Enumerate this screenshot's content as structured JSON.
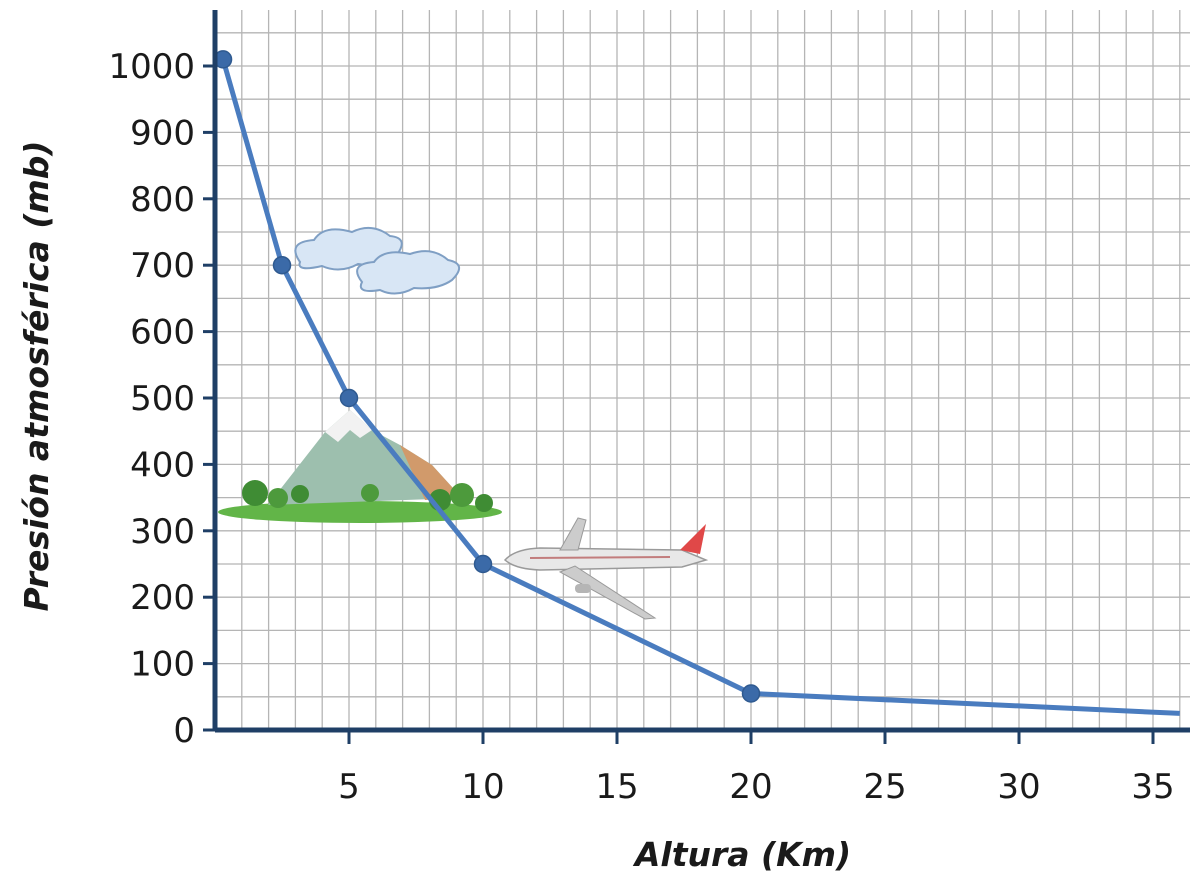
{
  "chart_data": {
    "type": "line",
    "xlabel": "Altura (Km)",
    "ylabel": "Presión atmosférica (mb)",
    "xlim": [
      0,
      36
    ],
    "ylim": [
      0,
      1050
    ],
    "x_ticks": [
      5,
      10,
      15,
      20,
      25,
      30,
      35
    ],
    "y_ticks": [
      0,
      100,
      200,
      300,
      400,
      500,
      600,
      700,
      800,
      900,
      1000
    ],
    "grid": true,
    "series": [
      {
        "x": [
          0.3,
          2.5,
          5,
          10,
          20,
          36
        ],
        "y": [
          1010,
          700,
          500,
          250,
          55,
          25
        ],
        "markers": [
          true,
          true,
          true,
          true,
          true,
          false
        ]
      }
    ],
    "illustrations": [
      "cloud-icon",
      "mountain-icon",
      "airplane-icon"
    ],
    "colors": {
      "line": "#4a7cbf",
      "marker": "#3b6aa8",
      "axis": "#1f3f66",
      "grid": "#b5b5b5"
    }
  }
}
